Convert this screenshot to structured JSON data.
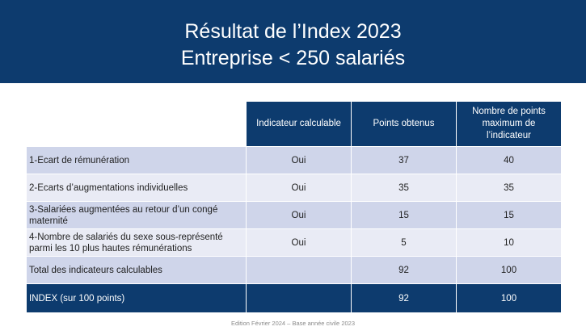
{
  "header": {
    "title_line1": "Résultat de l’Index 2023",
    "title_line2": "Entreprise < 250 salariés"
  },
  "table": {
    "columns": [
      "",
      "Indicateur calculable",
      "Points obtenus",
      "Nombre de points maximum de l’indicateur"
    ],
    "rows": [
      {
        "label": "1-Ecart de rémunération",
        "calculable": "Oui",
        "points": "37",
        "max": "40"
      },
      {
        "label": "2-Ecarts d’augmentations individuelles",
        "calculable": "Oui",
        "points": "35",
        "max": "35"
      },
      {
        "label": "3-Salariées augmentées au retour d’un congé maternité",
        "calculable": "Oui",
        "points": "15",
        "max": "15"
      },
      {
        "label": "4-Nombre de salariés du sexe sous-représenté parmi les 10 plus hautes rémunérations",
        "calculable": "Oui",
        "points": "5",
        "max": "10"
      },
      {
        "label": "Total des indicateurs calculables",
        "calculable": "",
        "points": "92",
        "max": "100"
      }
    ],
    "index_row": {
      "label": "INDEX (sur 100 points)",
      "calculable": "",
      "points": "92",
      "max": "100"
    }
  },
  "footer": {
    "text": "Edition Février 2024 – Base année civile 2023"
  }
}
